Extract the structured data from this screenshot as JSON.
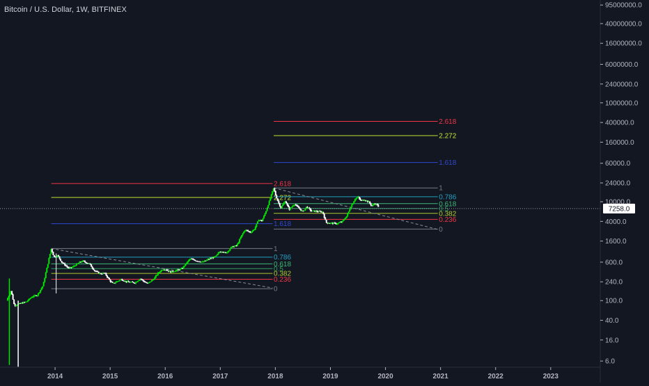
{
  "title": "Bitcoin / U.S. Dollar, 1W, BITFINEX",
  "colors": {
    "background": "#131722",
    "axis_text": "#b2b5be",
    "axis_line": "#2a2e39",
    "candle_up": "#00e600",
    "candle_down": "#ffffff",
    "crosshair": "#9598a1",
    "trendline": "#8a8e99"
  },
  "chart_data": {
    "type": "candlestick",
    "scale": "log",
    "grid": false,
    "ylim": [
      4.5,
      120000000
    ],
    "xlim": [
      2013.0,
      2023.9
    ],
    "y_ticks": [
      {
        "value": 95000000,
        "label": "95000000.0"
      },
      {
        "value": 40000000,
        "label": "40000000.0"
      },
      {
        "value": 16000000,
        "label": "16000000.0"
      },
      {
        "value": 6000000,
        "label": "6000000.0"
      },
      {
        "value": 2400000,
        "label": "2400000.0"
      },
      {
        "value": 1000000,
        "label": "1000000.0"
      },
      {
        "value": 400000,
        "label": "400000.0"
      },
      {
        "value": 160000,
        "label": "160000.0"
      },
      {
        "value": 60000,
        "label": "60000.0"
      },
      {
        "value": 24000,
        "label": "24000.0"
      },
      {
        "value": 10000,
        "label": "10000.0"
      },
      {
        "value": 4000,
        "label": "4000.0"
      },
      {
        "value": 1600,
        "label": "1600.0"
      },
      {
        "value": 600,
        "label": "600.0"
      },
      {
        "value": 240,
        "label": "240.0"
      },
      {
        "value": 100,
        "label": "100.0"
      },
      {
        "value": 40,
        "label": "40.0"
      },
      {
        "value": 16,
        "label": "16.0"
      },
      {
        "value": 6,
        "label": "6.0"
      }
    ],
    "x_ticks": [
      {
        "value": 2014.0,
        "label": "2014"
      },
      {
        "value": 2015.0,
        "label": "2015"
      },
      {
        "value": 2016.0,
        "label": "2016"
      },
      {
        "value": 2017.0,
        "label": "2017"
      },
      {
        "value": 2018.0,
        "label": "2018"
      },
      {
        "value": 2019.0,
        "label": "2019"
      },
      {
        "value": 2020.0,
        "label": "2020"
      },
      {
        "value": 2021.0,
        "label": "2021"
      },
      {
        "value": 2022.0,
        "label": "2022"
      },
      {
        "value": 2023.0,
        "label": "2023"
      }
    ],
    "last_price": {
      "value": 7258,
      "label": "7258.0"
    },
    "anchors": [
      [
        2013.12,
        100
      ],
      [
        2013.2,
        160
      ],
      [
        2013.26,
        80
      ],
      [
        2013.38,
        88
      ],
      [
        2013.48,
        95
      ],
      [
        2013.58,
        120
      ],
      [
        2013.68,
        130
      ],
      [
        2013.78,
        200
      ],
      [
        2013.85,
        450
      ],
      [
        2013.93,
        1130
      ],
      [
        2013.98,
        760
      ],
      [
        2014.05,
        820
      ],
      [
        2014.12,
        600
      ],
      [
        2014.25,
        450
      ],
      [
        2014.32,
        480
      ],
      [
        2014.45,
        600
      ],
      [
        2014.5,
        630
      ],
      [
        2014.62,
        560
      ],
      [
        2014.72,
        400
      ],
      [
        2014.82,
        350
      ],
      [
        2014.9,
        360
      ],
      [
        2015.0,
        250
      ],
      [
        2015.05,
        220
      ],
      [
        2015.2,
        270
      ],
      [
        2015.3,
        240
      ],
      [
        2015.45,
        230
      ],
      [
        2015.55,
        280
      ],
      [
        2015.6,
        250
      ],
      [
        2015.68,
        220
      ],
      [
        2015.8,
        280
      ],
      [
        2015.87,
        360
      ],
      [
        2015.95,
        430
      ],
      [
        2016.0,
        430
      ],
      [
        2016.1,
        380
      ],
      [
        2016.3,
        440
      ],
      [
        2016.45,
        700
      ],
      [
        2016.55,
        650
      ],
      [
        2016.68,
        600
      ],
      [
        2016.8,
        700
      ],
      [
        2016.92,
        780
      ],
      [
        2016.98,
        960
      ],
      [
        2017.04,
        1000
      ],
      [
        2017.1,
        900
      ],
      [
        2017.2,
        1200
      ],
      [
        2017.3,
        1300
      ],
      [
        2017.4,
        2200
      ],
      [
        2017.45,
        2700
      ],
      [
        2017.55,
        2400
      ],
      [
        2017.62,
        2800
      ],
      [
        2017.7,
        4400
      ],
      [
        2017.75,
        4000
      ],
      [
        2017.82,
        6000
      ],
      [
        2017.9,
        11000
      ],
      [
        2017.97,
        19000
      ],
      [
        2018.0,
        14000
      ],
      [
        2018.05,
        10000
      ],
      [
        2018.1,
        7500
      ],
      [
        2018.18,
        10500
      ],
      [
        2018.25,
        7000
      ],
      [
        2018.35,
        9000
      ],
      [
        2018.42,
        7500
      ],
      [
        2018.5,
        6300
      ],
      [
        2018.57,
        8000
      ],
      [
        2018.65,
        6500
      ],
      [
        2018.75,
        6400
      ],
      [
        2018.86,
        6200
      ],
      [
        2018.92,
        3800
      ],
      [
        2019.0,
        3700
      ],
      [
        2019.12,
        3600
      ],
      [
        2019.22,
        4000
      ],
      [
        2019.3,
        5200
      ],
      [
        2019.37,
        8000
      ],
      [
        2019.45,
        11500
      ],
      [
        2019.5,
        12500
      ],
      [
        2019.55,
        10500
      ],
      [
        2019.62,
        11000
      ],
      [
        2019.7,
        9800
      ],
      [
        2019.75,
        8200
      ],
      [
        2019.8,
        9200
      ],
      [
        2019.85,
        8800
      ],
      [
        2019.88,
        7258
      ]
    ],
    "fib_sets": [
      {
        "x_start": 2013.93,
        "x_end": 2017.95,
        "level0": 174,
        "level1": 1130,
        "label_x": 2017.97,
        "levels": [
          {
            "ratio": 2.618,
            "label": "2.618",
            "color": "#f23645"
          },
          {
            "ratio": 2.272,
            "label": "2.272",
            "color": "#c2e330"
          },
          {
            "ratio": 1.618,
            "label": "1.618",
            "color": "#3048d0"
          },
          {
            "ratio": 1,
            "label": "1",
            "color": "#787b86"
          },
          {
            "ratio": 0.786,
            "label": "0.786",
            "color": "#22a0c0"
          },
          {
            "ratio": 0.618,
            "label": "0.618",
            "color": "#3cb878"
          },
          {
            "ratio": 0.5,
            "label": "0.5",
            "color": "#2fa060"
          },
          {
            "ratio": 0.382,
            "label": "0.382",
            "color": "#b0c830"
          },
          {
            "ratio": 0.236,
            "label": "0.236",
            "color": "#f23645"
          },
          {
            "ratio": 0,
            "label": "0",
            "color": "#787b86"
          }
        ]
      },
      {
        "x_start": 2017.97,
        "x_end": 2020.95,
        "level0": 2800,
        "level1": 19000,
        "label_x": 2020.97,
        "levels": [
          {
            "ratio": 2.618,
            "label": "2.618",
            "color": "#f23645"
          },
          {
            "ratio": 2.272,
            "label": "2.272",
            "color": "#c2e330"
          },
          {
            "ratio": 1.618,
            "label": "1.618",
            "color": "#3048d0"
          },
          {
            "ratio": 1,
            "label": "1",
            "color": "#787b86"
          },
          {
            "ratio": 0.786,
            "label": "0.786",
            "color": "#22a0c0"
          },
          {
            "ratio": 0.618,
            "label": "0.618",
            "color": "#3cb878"
          },
          {
            "ratio": 0.5,
            "label": "0.5",
            "color": "#2fa060"
          },
          {
            "ratio": 0.382,
            "label": "0.382",
            "color": "#b0c830"
          },
          {
            "ratio": 0.236,
            "label": "0.236",
            "color": "#f23645"
          },
          {
            "ratio": 0,
            "label": "0",
            "color": "#787b86"
          }
        ]
      }
    ],
    "trendlines": [
      {
        "x1": 2013.93,
        "y1": 1130,
        "x2": 2017.95,
        "y2": 180
      },
      {
        "x1": 2017.97,
        "y1": 19000,
        "x2": 2020.95,
        "y2": 2750
      }
    ]
  }
}
